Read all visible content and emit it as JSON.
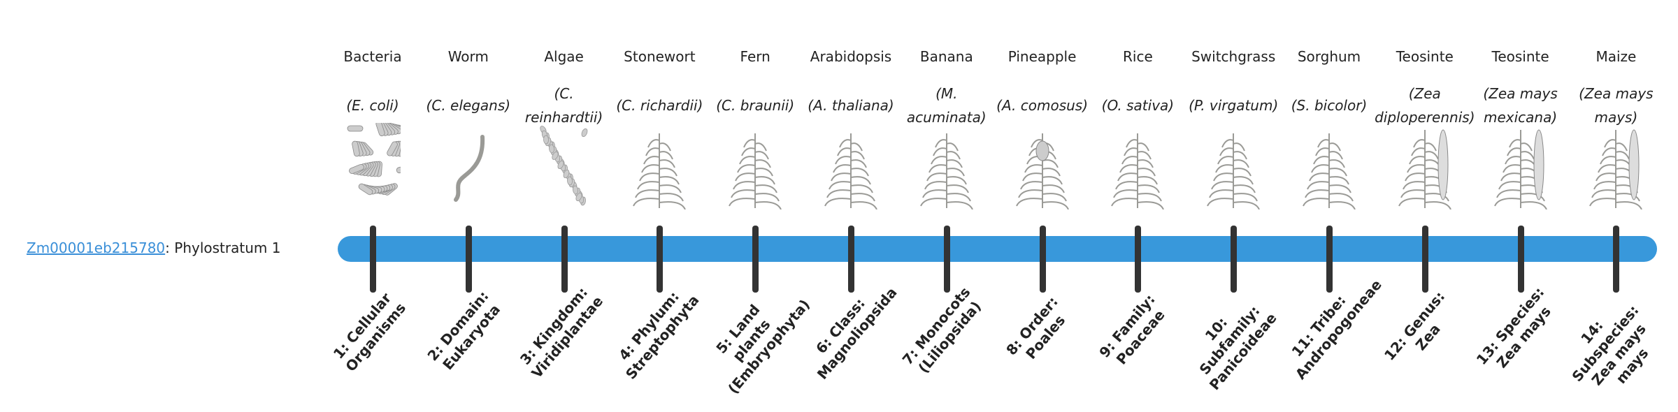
{
  "gene": {
    "id": "Zm00001eb215780",
    "suffix": ": Phylostratum 1"
  },
  "colors": {
    "bar": "#3898db",
    "tick": "#333333",
    "link": "#3a8fd8",
    "illustration": "#9a9a96"
  },
  "strata": [
    {
      "common": "Bacteria",
      "scientific": "(E. coli)",
      "level": "1: Cellular Organisms",
      "icon": "bacteria-icon"
    },
    {
      "common": "Worm",
      "scientific": "(C. elegans)",
      "level": "2: Domain: Eukaryota",
      "icon": "worm-icon"
    },
    {
      "common": "Algae",
      "scientific": "(C. reinhardtii)",
      "level": "3: Kingdom: Viridiplantae",
      "icon": "algae-icon"
    },
    {
      "common": "Stonewort",
      "scientific": "(C. richardii)",
      "level": "4: Phylum: Streptophyta",
      "icon": "stonewort-icon"
    },
    {
      "common": "Fern",
      "scientific": "(C. braunii)",
      "level": "5: Land plants (Embryophyta)",
      "icon": "fern-icon"
    },
    {
      "common": "Arabidopsis",
      "scientific": "(A. thaliana)",
      "level": "6: Class: Magnoliopsida",
      "icon": "arabidopsis-icon"
    },
    {
      "common": "Banana",
      "scientific": "(M. acuminata)",
      "level": "7: Monocots (Liliopsida)",
      "icon": "banana-plant-icon"
    },
    {
      "common": "Pineapple",
      "scientific": "(A. comosus)",
      "level": "8: Order: Poales",
      "icon": "pineapple-plant-icon"
    },
    {
      "common": "Rice",
      "scientific": "(O. sativa)",
      "level": "9: Family: Poaceae",
      "icon": "rice-plant-icon"
    },
    {
      "common": "Switchgrass",
      "scientific": "(P. virgatum)",
      "level": "10: Subfamily: Panicoideae",
      "icon": "switchgrass-icon"
    },
    {
      "common": "Sorghum",
      "scientific": "(S. bicolor)",
      "level": "11: Tribe: Andropogoneae",
      "icon": "sorghum-icon"
    },
    {
      "common": "Teosinte",
      "scientific": "(Zea diploperennis)",
      "level": "12: Genus: Zea",
      "icon": "teosinte-icon"
    },
    {
      "common": "Teosinte",
      "scientific": "(Zea mays mexicana)",
      "level": "13: Species: Zea mays",
      "icon": "teosinte-icon"
    },
    {
      "common": "Maize",
      "scientific": "(Zea mays mays)",
      "level": "14: Subspecies: Zea mays mays",
      "icon": "maize-icon"
    }
  ]
}
